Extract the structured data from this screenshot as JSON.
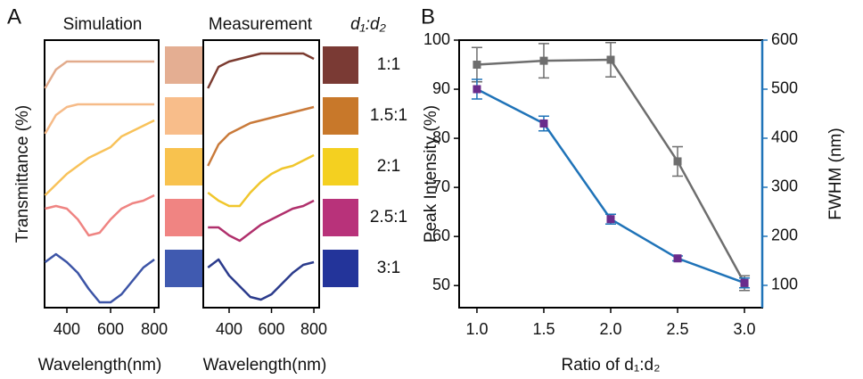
{
  "chart_data": [
    {
      "type": "line",
      "panel": "A",
      "title": "Simulation",
      "xlabel": "Wavelength(nm)",
      "ylabel": "Transmittance (%)",
      "x": [
        300,
        350,
        400,
        450,
        500,
        550,
        600,
        650,
        700,
        750,
        800
      ],
      "xlim": [
        298,
        820
      ],
      "xticks": [
        400,
        600,
        800
      ],
      "ylim": [
        0,
        100
      ],
      "series": [
        {
          "color": "#e2ab8c",
          "values": [
            82,
            89,
            92,
            92,
            92,
            92,
            92,
            92,
            92,
            92,
            92
          ]
        },
        {
          "color": "#f6bb88",
          "values": [
            65,
            72,
            75,
            76,
            76,
            76,
            76,
            76,
            76,
            76,
            76
          ]
        },
        {
          "color": "#f8c25a",
          "values": [
            42,
            46,
            50,
            53,
            56,
            58,
            60,
            64,
            66,
            68,
            70
          ]
        },
        {
          "color": "#ef8482",
          "values": [
            37,
            38,
            37,
            33,
            27,
            28,
            33,
            37,
            39,
            40,
            42
          ]
        },
        {
          "color": "#3c54a6",
          "values": [
            17,
            20,
            17,
            13,
            7,
            2,
            2,
            5,
            10,
            15,
            18
          ]
        }
      ],
      "swatch_colors": [
        "#e4ae92",
        "#f8bd8a",
        "#f8c24e",
        "#f08482",
        "#405ab0"
      ]
    },
    {
      "type": "line",
      "title": "Measurement",
      "xlabel": "Wavelength(nm)",
      "x": [
        300,
        350,
        400,
        450,
        500,
        550,
        600,
        650,
        700,
        750,
        800
      ],
      "xlim": [
        278,
        825
      ],
      "xticks": [
        400,
        600,
        800
      ],
      "ylim": [
        0,
        100
      ],
      "series": [
        {
          "color": "#7b3b30",
          "values": [
            82,
            90,
            92,
            93,
            94,
            95,
            95,
            95,
            95,
            95,
            93
          ]
        },
        {
          "color": "#c97a3a",
          "values": [
            53,
            61,
            65,
            67,
            69,
            70,
            71,
            72,
            73,
            74,
            75
          ]
        },
        {
          "color": "#f0c62c",
          "values": [
            43,
            40,
            38,
            38,
            43,
            47,
            50,
            52,
            53,
            55,
            57
          ]
        },
        {
          "color": "#b0306c",
          "values": [
            30,
            30,
            27,
            25,
            28,
            31,
            33,
            35,
            37,
            38,
            40
          ]
        },
        {
          "color": "#2b3b8c",
          "values": [
            15,
            18,
            12,
            8,
            4,
            3,
            5,
            9,
            13,
            16,
            17
          ]
        }
      ],
      "swatch_colors": [
        "#7a3a34",
        "#c8782a",
        "#f4d020",
        "#b8327a",
        "#23349a"
      ],
      "legend_title": "d₁:d₂",
      "swatch_labels": [
        "1:1",
        "1.5:1",
        "2:1",
        "2.5:1",
        "3:1"
      ]
    },
    {
      "type": "line",
      "panel": "B",
      "xlabel": "Ratio of d₁:d₂",
      "ylabel": "Peak Intensity (%)",
      "y2label": "FWHM (nm)",
      "x": [
        1.0,
        1.5,
        2.0,
        2.5,
        3.0
      ],
      "xlim": [
        0.867,
        3.133
      ],
      "xticks": [
        {
          "value": 1,
          "label": "1.0"
        },
        1.5,
        {
          "value": 2,
          "label": "2.0"
        },
        2.5,
        {
          "value": 3,
          "label": "3.0"
        }
      ],
      "ylim": [
        45.5,
        100
      ],
      "yticks": [
        50,
        60,
        70,
        80,
        90,
        100
      ],
      "y2lim": [
        54.5,
        600
      ],
      "y2ticks": [
        100,
        200,
        300,
        400,
        500,
        600
      ],
      "y2color": "#1f73b8",
      "series": [
        {
          "color": "#6e6e6e",
          "marker_color": "#6e6e6e",
          "values": [
            95,
            95.8,
            96,
            75.3,
            50.5
          ],
          "errors": [
            3.5,
            3.5,
            3.5,
            3,
            1.5
          ]
        },
        {
          "color": "#1f73b8",
          "marker_color": "#6a2c8c",
          "axis": "y2",
          "values": [
            500,
            430,
            235,
            155,
            105
          ],
          "errors": [
            20,
            15,
            10,
            5,
            10
          ]
        }
      ]
    }
  ]
}
